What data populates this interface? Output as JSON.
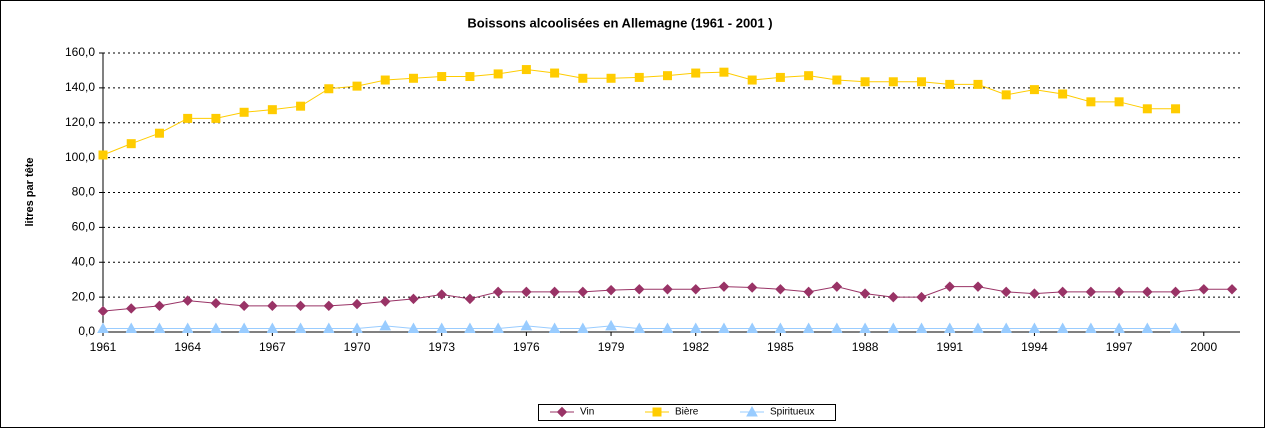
{
  "chart_data": {
    "type": "line",
    "title": "Boissons alcoolisées en Allemagne  (1961  - 2001 )",
    "y_label": "litres par tête",
    "x": [
      1961,
      1962,
      1963,
      1964,
      1965,
      1966,
      1967,
      1968,
      1969,
      1970,
      1971,
      1972,
      1973,
      1974,
      1975,
      1976,
      1977,
      1978,
      1979,
      1980,
      1981,
      1982,
      1983,
      1984,
      1985,
      1986,
      1987,
      1988,
      1989,
      1990,
      1991,
      1992,
      1993,
      1994,
      1995,
      1996,
      1997,
      1998,
      1999,
      2000,
      2001
    ],
    "xlim": [
      1961,
      2001
    ],
    "xticks": [
      1961,
      1964,
      1967,
      1970,
      1973,
      1976,
      1979,
      1982,
      1985,
      1988,
      1991,
      1994,
      1997,
      2000
    ],
    "ylim": [
      0,
      160
    ],
    "yticks": [
      {
        "value": 0,
        "label": "0,0"
      },
      {
        "value": 20,
        "label": "20,0"
      },
      {
        "value": 40,
        "label": "40,0"
      },
      {
        "value": 60,
        "label": "60,0"
      },
      {
        "value": 80,
        "label": "80,0"
      },
      {
        "value": 100,
        "label": "100,0"
      },
      {
        "value": 120,
        "label": "120,0"
      },
      {
        "value": 140,
        "label": "140,0"
      },
      {
        "value": 160,
        "label": "160,0"
      }
    ],
    "grid": true,
    "legend": "bottom",
    "series": [
      {
        "name": "Vin",
        "color": "#993366",
        "marker": "diamond",
        "values": [
          12,
          13.5,
          15,
          18,
          16.5,
          15,
          15,
          15,
          15,
          16,
          17.5,
          19,
          21.5,
          19,
          23,
          23,
          23,
          23,
          24,
          24.5,
          24.5,
          24.5,
          26,
          25.5,
          24.5,
          23,
          26,
          22,
          20,
          20,
          26,
          26,
          23,
          22,
          23,
          23,
          23,
          23,
          23,
          24.5,
          24.5
        ]
      },
      {
        "name": "Bière",
        "color": "#ffcc00",
        "marker": "square",
        "values": [
          101.5,
          108,
          114,
          122.5,
          122.5,
          126,
          127.5,
          129.5,
          139.5,
          141,
          144.5,
          145.5,
          146.5,
          146.5,
          148,
          150.5,
          148.5,
          145.5,
          145.5,
          146,
          147,
          148.5,
          149,
          144.5,
          146,
          147,
          144.5,
          143.5,
          143.5,
          143.5,
          142,
          142,
          136,
          139,
          136.5,
          132,
          132,
          128,
          128,
          null,
          null
        ]
      },
      {
        "name": "Spiritueux",
        "color": "#99ccff",
        "marker": "triangle",
        "values": [
          2,
          2,
          2,
          2,
          2,
          2,
          2,
          2,
          2,
          2,
          3.5,
          2,
          2,
          2,
          2,
          3.5,
          2,
          2,
          3.5,
          2,
          2,
          2,
          2,
          2,
          2,
          2,
          2,
          2,
          2,
          2,
          2,
          2,
          2,
          2,
          2,
          2,
          2,
          2,
          2,
          null,
          null
        ]
      }
    ]
  }
}
